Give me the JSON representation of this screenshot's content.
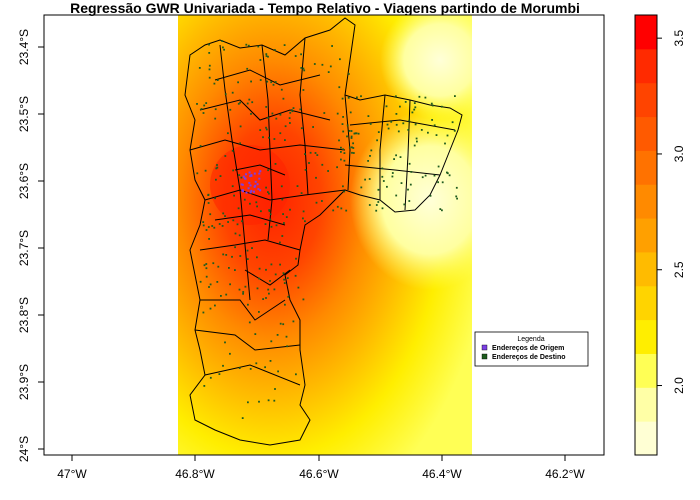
{
  "title": "Regressão GWR Univariada - Tempo Relativo - Viagens partindo de Morumbi",
  "x_ticks": [
    "47°W",
    "46.8°W",
    "46.6°W",
    "46.4°W",
    "46.2°W"
  ],
  "y_ticks": [
    "23.4°S",
    "23.5°S",
    "23.6°S",
    "23.7°S",
    "23.8°S",
    "23.9°S",
    "24°S"
  ],
  "legend": {
    "title": "Legenda",
    "items": [
      {
        "label": "Endereços de Origem",
        "color": "#7b3fe4"
      },
      {
        "label": "Endereços de Destino",
        "color": "#1e5c1e"
      }
    ]
  },
  "colorbar": {
    "ticks": [
      "2.0",
      "2.5",
      "3.0",
      "3.5"
    ],
    "tick_values": [
      2.0,
      2.5,
      3.0,
      3.5
    ],
    "min": 1.7,
    "max": 3.6,
    "colors": [
      "#ffffd4",
      "#ffffa6",
      "#ffff55",
      "#ffee00",
      "#ffd400",
      "#ffbb00",
      "#ffa000",
      "#ff8a00",
      "#ff7200",
      "#ff5a00",
      "#ff4400",
      "#ff2a00",
      "#ff0000"
    ]
  },
  "colors": {
    "origin": "#7b3fe4",
    "destination": "#1e5c1e"
  }
}
